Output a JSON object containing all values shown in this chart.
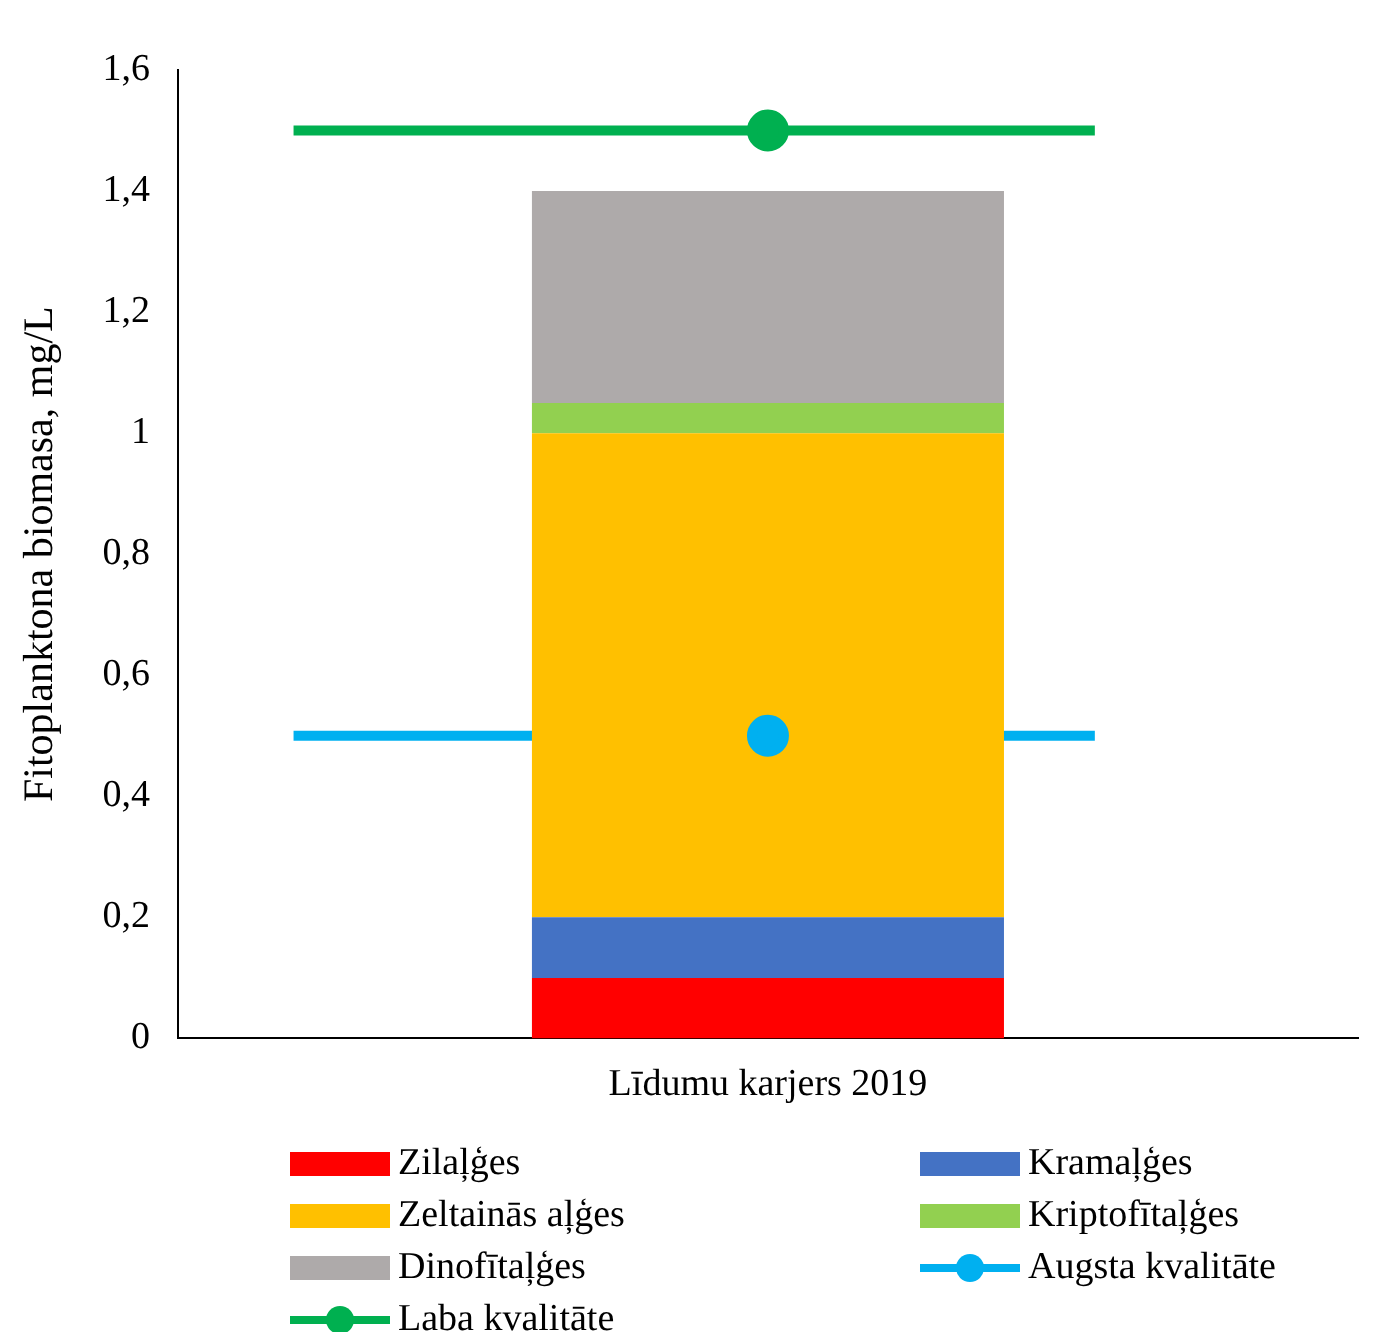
{
  "chart_data": {
    "type": "bar",
    "stacked": true,
    "ylabel": "Fitoplanktona biomasa, mg/L",
    "categories": [
      "Līdumu karjers 2019"
    ],
    "ylim": [
      0,
      1.6
    ],
    "yticks": [
      0,
      {
        "value": 0.2,
        "label": "0,2"
      },
      {
        "value": 0.4,
        "label": "0,4"
      },
      {
        "value": 0.6,
        "label": "0,6"
      },
      {
        "value": 0.8,
        "label": "0,8"
      },
      1,
      {
        "value": 1.2,
        "label": "1,2"
      },
      {
        "value": 1.4,
        "label": "1,4"
      },
      {
        "value": 1.6,
        "label": "1,6"
      }
    ],
    "grid": false,
    "legend": "bottom",
    "ref_lines": [
      {
        "axis": "y",
        "value": 0.5,
        "color": "#00b0f0"
      },
      {
        "axis": "y",
        "value": 1.5,
        "color": "#00b050"
      }
    ],
    "series": [
      {
        "name": "Zilaļģes",
        "color": "#ff0000",
        "values": [
          0.1
        ]
      },
      {
        "name": "Kramaļģes",
        "color": "#4472c4",
        "values": [
          0.1
        ]
      },
      {
        "name": "Zeltainās aļģes",
        "color": "#ffc000",
        "values": [
          0.8
        ]
      },
      {
        "name": "Kriptofītaļģes",
        "color": "#92d050",
        "values": [
          0.05
        ]
      },
      {
        "name": "Dinofītaļģes",
        "color": "#aeaaaa",
        "values": [
          0.35
        ]
      },
      {
        "name": "Augsta kvalitāte",
        "type": "line",
        "marker": "circle",
        "color": "#00b0f0",
        "values": [
          0.5
        ]
      },
      {
        "name": "Laba kvalitāte",
        "type": "line",
        "marker": "circle",
        "color": "#00b050",
        "values": [
          1.5
        ]
      }
    ]
  }
}
